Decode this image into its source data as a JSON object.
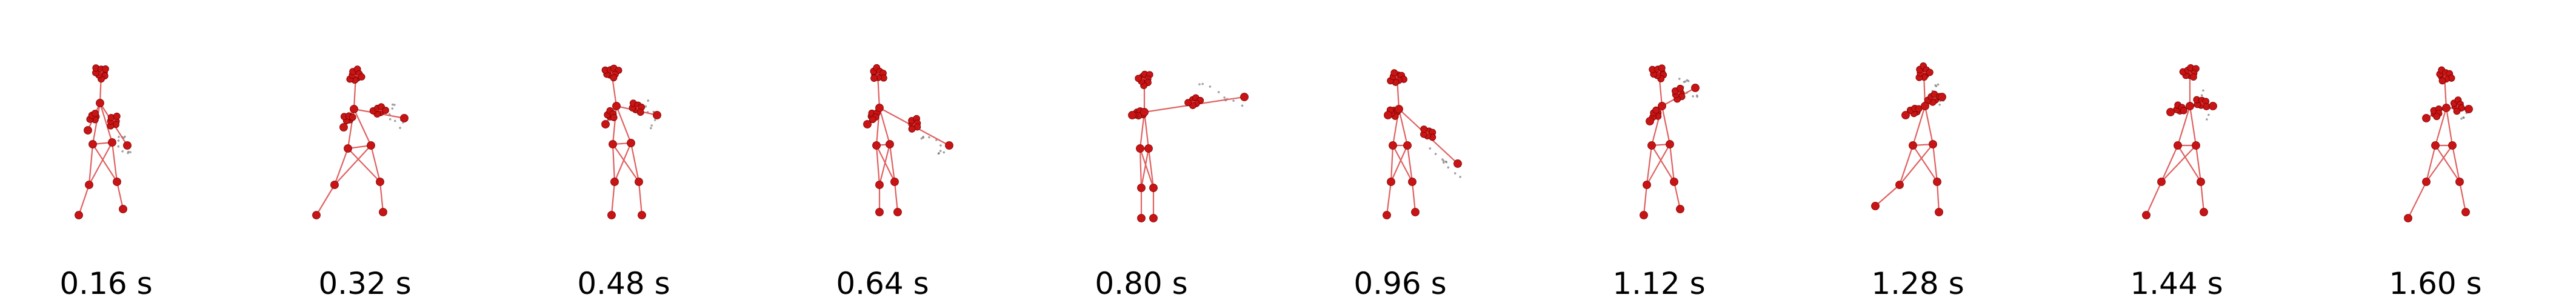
{
  "frames": [
    {
      "time_label": "0.16 s"
    },
    {
      "time_label": "0.32 s"
    },
    {
      "time_label": "0.48 s"
    },
    {
      "time_label": "0.64 s"
    },
    {
      "time_label": "0.80 s"
    },
    {
      "time_label": "0.96 s"
    },
    {
      "time_label": "1.12 s"
    },
    {
      "time_label": "1.28 s"
    },
    {
      "time_label": "1.44 s"
    },
    {
      "time_label": "1.60 s"
    }
  ],
  "colors": {
    "joint": "#c81414",
    "bone": "#e06060",
    "trail": "#777777"
  }
}
